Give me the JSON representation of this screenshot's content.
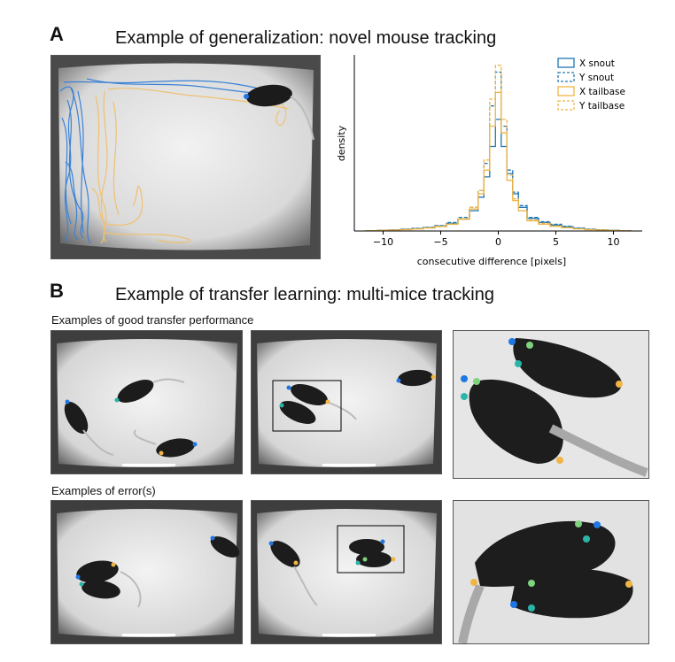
{
  "panelA": {
    "letter": "A",
    "title": "Example of generalization: novel mouse tracking",
    "chart_data": {
      "type": "histogram",
      "xlabel": "consecutive difference [pixels]",
      "ylabel": "density",
      "xlim": [
        -12.5,
        12.5
      ],
      "xticks": [
        -10,
        -5,
        0,
        5,
        10
      ],
      "legend_position": "top-right",
      "bin_centers": [
        -11,
        -10,
        -9,
        -8,
        -7,
        -6,
        -5,
        -4,
        -3,
        -2,
        -1.5,
        -1,
        -0.5,
        0,
        0.5,
        1,
        1.5,
        2,
        3,
        4,
        5,
        6,
        7,
        8,
        9,
        10,
        11
      ],
      "series": [
        {
          "name": "X snout",
          "color": "#1f77b4",
          "dashed": false,
          "values": [
            0.002,
            0.004,
            0.006,
            0.01,
            0.014,
            0.02,
            0.03,
            0.045,
            0.07,
            0.12,
            0.2,
            0.32,
            0.5,
            0.66,
            0.5,
            0.34,
            0.22,
            0.14,
            0.075,
            0.05,
            0.035,
            0.025,
            0.016,
            0.01,
            0.006,
            0.004,
            0.002
          ]
        },
        {
          "name": "Y snout",
          "color": "#1f77b4",
          "dashed": true,
          "values": [
            0.002,
            0.004,
            0.007,
            0.011,
            0.016,
            0.022,
            0.032,
            0.05,
            0.08,
            0.14,
            0.24,
            0.4,
            0.74,
            0.94,
            0.62,
            0.36,
            0.23,
            0.15,
            0.08,
            0.055,
            0.04,
            0.028,
            0.018,
            0.011,
            0.007,
            0.004,
            0.002
          ]
        },
        {
          "name": "X tailbase",
          "color": "#f0b545",
          "dashed": false,
          "values": [
            0.001,
            0.003,
            0.005,
            0.008,
            0.012,
            0.018,
            0.026,
            0.04,
            0.07,
            0.13,
            0.22,
            0.36,
            0.62,
            0.82,
            0.58,
            0.3,
            0.18,
            0.12,
            0.06,
            0.04,
            0.028,
            0.02,
            0.013,
            0.008,
            0.005,
            0.003,
            0.001
          ]
        },
        {
          "name": "Y tailbase",
          "color": "#f0b545",
          "dashed": true,
          "values": [
            0.001,
            0.003,
            0.005,
            0.008,
            0.013,
            0.019,
            0.028,
            0.042,
            0.072,
            0.14,
            0.24,
            0.42,
            0.78,
            0.98,
            0.66,
            0.33,
            0.19,
            0.12,
            0.065,
            0.045,
            0.03,
            0.02,
            0.013,
            0.008,
            0.005,
            0.003,
            0.001
          ]
        }
      ]
    }
  },
  "panelB": {
    "letter": "B",
    "title": "Example of transfer learning: multi-mice tracking",
    "good_caption": "Examples of good transfer performance",
    "error_caption": "Examples of error(s)"
  },
  "colors": {
    "snout": "#1f77e4",
    "tracking_blue": "#3b82d6",
    "tracking_orange": "#f0c070",
    "keypoint_green": "#7fd37f",
    "keypoint_teal": "#2bb5a8",
    "keypoint_orange": "#f0b545"
  }
}
